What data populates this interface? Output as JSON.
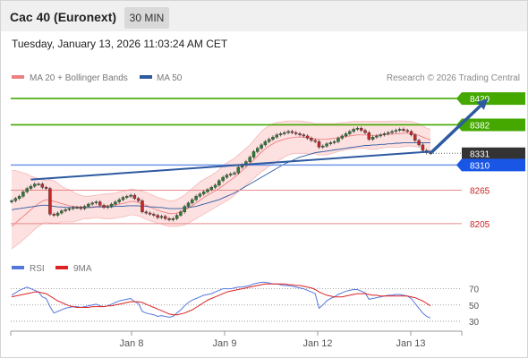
{
  "header": {
    "title": "Cac 40 (Euronext)",
    "timeframe_label": "30 MIN"
  },
  "timestamp": "Tuesday, January 13, 2026 11:03:24 AM CET",
  "copyright": "Research © 2026 Trading Central",
  "colors": {
    "up_candle": "#2e7d32",
    "down_candle": "#c62828",
    "resistance": "#44a800",
    "support_line": "#6f95e6",
    "support_label": "#1a56e6",
    "neutral_level": "#e88a8a",
    "neutral_text": "#cc2222",
    "current_price": "#333333",
    "bollinger_fill": "#fde0e0",
    "ma20": "#f08080",
    "ma50": "#2e5aa0",
    "trend_line": "#2e5aa0",
    "rsi": "#5577dd",
    "rsi_ma": "#dd2222"
  },
  "chart_data": [
    {
      "type": "candlestick",
      "legend": [
        {
          "name": "MA 20 + Bollinger Bands",
          "color": "#f08080"
        },
        {
          "name": "MA 50",
          "color": "#2e5aa0"
        }
      ],
      "x_ticks": [
        "Jan 8",
        "Jan 9",
        "Jan 12",
        "Jan 13"
      ],
      "ylim": [
        8160,
        8450
      ],
      "levels": [
        {
          "value": 8429,
          "label": "8429",
          "kind": "resistance"
        },
        {
          "value": 8382,
          "label": "8382",
          "kind": "resistance"
        },
        {
          "value": 8331,
          "label": "8331",
          "kind": "current"
        },
        {
          "value": 8310,
          "label": "8310",
          "kind": "support"
        },
        {
          "value": 8265,
          "label": "8265",
          "kind": "neutral"
        },
        {
          "value": 8205,
          "label": "8205",
          "kind": "neutral"
        }
      ],
      "close": [
        8246,
        8250,
        8254,
        8262,
        8268,
        8272,
        8276,
        8276,
        8270,
        8268,
        8222,
        8220,
        8224,
        8228,
        8230,
        8232,
        8234,
        8234,
        8232,
        8236,
        8240,
        8242,
        8244,
        8238,
        8234,
        8236,
        8240,
        8244,
        8248,
        8252,
        8254,
        8256,
        8250,
        8246,
        8226,
        8224,
        8222,
        8220,
        8216,
        8218,
        8214,
        8212,
        8214,
        8220,
        8226,
        8236,
        8242,
        8248,
        8254,
        8258,
        8262,
        8266,
        8270,
        8274,
        8282,
        8288,
        8292,
        8294,
        8296,
        8306,
        8310,
        8316,
        8324,
        8334,
        8340,
        8346,
        8352,
        8356,
        8360,
        8364,
        8366,
        8368,
        8370,
        8368,
        8366,
        8364,
        8362,
        8358,
        8354,
        8352,
        8342,
        8344,
        8348,
        8350,
        8352,
        8358,
        8362,
        8366,
        8370,
        8374,
        8376,
        8372,
        8368,
        8356,
        8360,
        8362,
        8364,
        8366,
        8368,
        8370,
        8372,
        8374,
        8372,
        8370,
        8364,
        8354,
        8346,
        8336,
        8332,
        8331
      ],
      "bb_upper": [
        8300,
        8300,
        8298,
        8296,
        8294,
        8290,
        8288,
        8286,
        8284,
        8282,
        8284,
        8282,
        8278,
        8272,
        8268,
        8266,
        8262,
        8258,
        8256,
        8254,
        8254,
        8255,
        8256,
        8257,
        8258,
        8258,
        8259,
        8260,
        8262,
        8263,
        8265,
        8267,
        8266,
        8265,
        8263,
        8261,
        8258,
        8255,
        8252,
        8250,
        8248,
        8246,
        8246,
        8248,
        8252,
        8256,
        8262,
        8268,
        8274,
        8280,
        8284,
        8288,
        8292,
        8296,
        8302,
        8308,
        8314,
        8318,
        8322,
        8328,
        8334,
        8340,
        8346,
        8354,
        8362,
        8370,
        8376,
        8380,
        8384,
        8386,
        8387,
        8388,
        8389,
        8389,
        8389,
        8389,
        8388,
        8387,
        8386,
        8384,
        8384,
        8384,
        8384,
        8384,
        8384,
        8385,
        8386,
        8386,
        8387,
        8388,
        8388,
        8388,
        8388,
        8388,
        8388,
        8388,
        8388,
        8388,
        8388,
        8389,
        8389,
        8389,
        8389,
        8388,
        8388,
        8386,
        8384,
        8380,
        8376,
        8374
      ],
      "ma20": [
        8200,
        8206,
        8212,
        8218,
        8224,
        8230,
        8236,
        8241,
        8245,
        8248,
        8247,
        8245,
        8243,
        8241,
        8239,
        8237,
        8236,
        8235,
        8235,
        8234,
        8234,
        8235,
        8236,
        8236,
        8237,
        8237,
        8238,
        8239,
        8240,
        8241,
        8243,
        8245,
        8244,
        8243,
        8240,
        8238,
        8235,
        8232,
        8229,
        8227,
        8225,
        8223,
        8223,
        8224,
        8226,
        8229,
        8233,
        8237,
        8242,
        8247,
        8252,
        8256,
        8260,
        8264,
        8268,
        8273,
        8278,
        8283,
        8288,
        8294,
        8300,
        8306,
        8312,
        8319,
        8326,
        8333,
        8339,
        8344,
        8348,
        8352,
        8354,
        8356,
        8358,
        8359,
        8360,
        8360,
        8360,
        8359,
        8358,
        8357,
        8356,
        8356,
        8356,
        8357,
        8358,
        8359,
        8360,
        8361,
        8362,
        8363,
        8364,
        8364,
        8364,
        8363,
        8363,
        8363,
        8364,
        8364,
        8365,
        8365,
        8366,
        8366,
        8367,
        8367,
        8366,
        8365,
        8363,
        8360,
        8357,
        8355
      ],
      "bb_lower": [
        8160,
        8165,
        8170,
        8176,
        8182,
        8188,
        8195,
        8200,
        8205,
        8208,
        8206,
        8206,
        8206,
        8208,
        8208,
        8208,
        8208,
        8210,
        8212,
        8214,
        8214,
        8215,
        8216,
        8215,
        8214,
        8214,
        8214,
        8215,
        8216,
        8217,
        8219,
        8221,
        8220,
        8219,
        8216,
        8213,
        8210,
        8208,
        8206,
        8204,
        8202,
        8200,
        8200,
        8200,
        8201,
        8203,
        8206,
        8210,
        8214,
        8218,
        8222,
        8226,
        8230,
        8234,
        8238,
        8242,
        8246,
        8250,
        8256,
        8262,
        8268,
        8274,
        8280,
        8286,
        8292,
        8298,
        8302,
        8308,
        8312,
        8316,
        8320,
        8324,
        8328,
        8330,
        8331,
        8331,
        8331,
        8330,
        8330,
        8330,
        8328,
        8328,
        8328,
        8330,
        8332,
        8334,
        8336,
        8337,
        8338,
        8339,
        8340,
        8340,
        8340,
        8339,
        8338,
        8338,
        8340,
        8341,
        8342,
        8342,
        8342,
        8342,
        8343,
        8344,
        8344,
        8343,
        8342,
        8340,
        8338,
        8336
      ],
      "ma50": [
        8230,
        8231,
        8232,
        8233,
        8234,
        8235,
        8236,
        8237,
        8238,
        8238,
        8237,
        8236,
        8235,
        8235,
        8234,
        8234,
        8234,
        8234,
        8234,
        8234,
        8234,
        8234,
        8235,
        8235,
        8235,
        8235,
        8235,
        8236,
        8236,
        8236,
        8237,
        8237,
        8237,
        8237,
        8236,
        8236,
        8235,
        8235,
        8234,
        8234,
        8233,
        8232,
        8232,
        8232,
        8232,
        8233,
        8234,
        8235,
        8236,
        8238,
        8240,
        8242,
        8244,
        8246,
        8248,
        8251,
        8254,
        8257,
        8260,
        8264,
        8268,
        8272,
        8276,
        8280,
        8284,
        8288,
        8292,
        8296,
        8300,
        8304,
        8308,
        8312,
        8315,
        8318,
        8321,
        8324,
        8326,
        8328,
        8330,
        8332,
        8333,
        8334,
        8335,
        8336,
        8337,
        8338,
        8339,
        8340,
        8341,
        8342,
        8343,
        8344,
        8345,
        8345,
        8346,
        8346,
        8347,
        8347,
        8348,
        8348,
        8349,
        8349,
        8350,
        8350,
        8350,
        8350,
        8350,
        8350,
        8350,
        8350
      ],
      "trend_line": {
        "start_index": 5,
        "start_value": 8284,
        "end_index": 109,
        "end_value": 8334
      },
      "projection": {
        "from_index": 109,
        "from_value": 8331,
        "to_index": 124,
        "to_value": 8429
      }
    },
    {
      "type": "line",
      "legend": [
        {
          "name": "RSI",
          "color": "#5577dd"
        },
        {
          "name": "9MA",
          "color": "#dd2222"
        }
      ],
      "ylim": [
        20,
        85
      ],
      "y_ticks": [
        "70",
        "50",
        "30"
      ],
      "rsi": [
        62,
        65,
        68,
        70,
        72,
        70,
        68,
        66,
        60,
        58,
        48,
        40,
        42,
        44,
        46,
        47,
        48,
        48,
        47,
        48,
        49,
        50,
        51,
        49,
        48,
        49,
        51,
        53,
        55,
        56,
        57,
        58,
        54,
        52,
        42,
        40,
        39,
        38,
        36,
        37,
        36,
        35,
        36,
        40,
        44,
        49,
        53,
        56,
        58,
        60,
        62,
        63,
        64,
        66,
        68,
        70,
        70,
        70,
        71,
        72,
        72,
        73,
        74,
        76,
        77,
        78,
        78,
        77,
        76,
        76,
        75,
        74,
        74,
        73,
        72,
        71,
        70,
        68,
        66,
        64,
        46,
        50,
        55,
        58,
        60,
        63,
        65,
        67,
        68,
        69,
        69,
        67,
        65,
        57,
        58,
        59,
        60,
        61,
        62,
        62,
        63,
        63,
        62,
        61,
        58,
        52,
        46,
        40,
        36,
        34
      ],
      "rsi_ma": [
        60,
        61,
        62,
        63,
        64,
        65,
        66,
        66,
        65,
        64,
        61,
        58,
        55,
        53,
        51,
        49,
        48,
        47,
        47,
        47,
        47,
        48,
        48,
        48,
        48,
        49,
        49,
        50,
        51,
        52,
        53,
        54,
        54,
        54,
        53,
        51,
        49,
        47,
        45,
        43,
        41,
        39,
        38,
        38,
        39,
        40,
        42,
        44,
        47,
        50,
        53,
        56,
        58,
        60,
        62,
        64,
        66,
        67,
        68,
        69,
        70,
        71,
        72,
        73,
        74,
        75,
        76,
        76,
        76,
        76,
        76,
        76,
        75,
        75,
        74,
        74,
        73,
        72,
        71,
        69,
        66,
        64,
        62,
        61,
        60,
        60,
        60,
        61,
        62,
        63,
        64,
        64,
        64,
        63,
        62,
        62,
        61,
        61,
        61,
        61,
        61,
        61,
        61,
        61,
        60,
        59,
        57,
        55,
        52,
        49
      ]
    }
  ]
}
